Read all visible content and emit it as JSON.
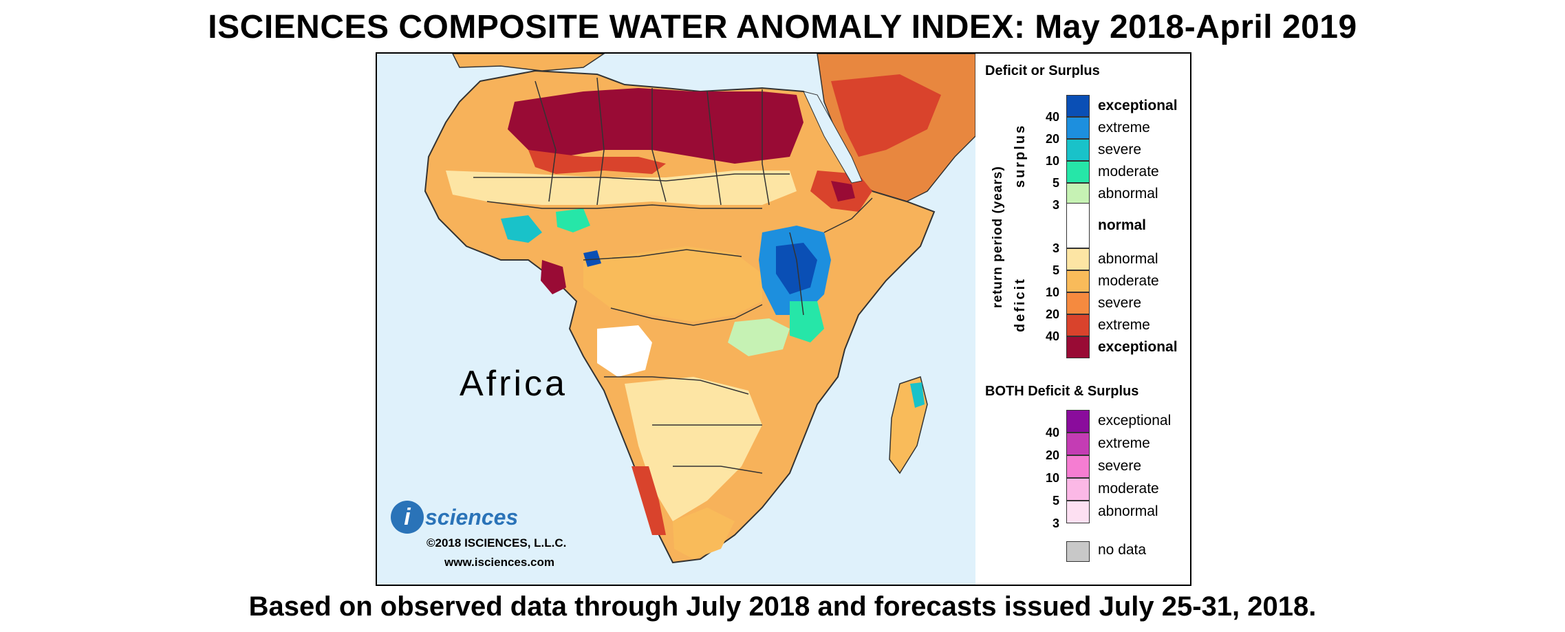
{
  "title": "ISCIENCES COMPOSITE WATER ANOMALY INDEX: May 2018-April 2019",
  "footer": "Based on observed data through July 2018 and forecasts issued July 25-31, 2018.",
  "map": {
    "region_label": "Africa",
    "logo_letter": "i",
    "logo_text": "sciences",
    "copyright": "©2018 ISCIENCES, L.L.C.",
    "website": "www.isciences.com"
  },
  "legend": {
    "heading_main": "Deficit or Surplus",
    "axis_label": "return period (years)",
    "surplus_label": "surplus",
    "deficit_label": "deficit",
    "normal_label": "normal",
    "surplus_classes": [
      {
        "label": "exceptional",
        "color": "#0a4fb5"
      },
      {
        "label": "extreme",
        "color": "#1d8fde"
      },
      {
        "label": "severe",
        "color": "#19c2c9"
      },
      {
        "label": "moderate",
        "color": "#26e6a8"
      },
      {
        "label": "abnormal",
        "color": "#c6f2b4"
      }
    ],
    "surplus_periods": [
      "40",
      "20",
      "10",
      "5",
      "3"
    ],
    "deficit_periods": [
      "3",
      "5",
      "10",
      "20",
      "40"
    ],
    "deficit_classes": [
      {
        "label": "abnormal",
        "color": "#fde5a4"
      },
      {
        "label": "moderate",
        "color": "#f9bb5a"
      },
      {
        "label": "severe",
        "color": "#f58a3f"
      },
      {
        "label": "extreme",
        "color": "#d9432c"
      },
      {
        "label": "exceptional",
        "color": "#990b35"
      }
    ],
    "heading_both": "BOTH Deficit & Surplus",
    "both_periods": [
      "40",
      "20",
      "10",
      "5",
      "3"
    ],
    "both_classes": [
      {
        "label": "exceptional",
        "color": "#8a0c9c"
      },
      {
        "label": "extreme",
        "color": "#c43cb4"
      },
      {
        "label": "severe",
        "color": "#f57dd2"
      },
      {
        "label": "moderate",
        "color": "#fbb8e6"
      },
      {
        "label": "abnormal",
        "color": "#fde0f2"
      }
    ],
    "no_data_label": "no data",
    "no_data_color": "#c8c8c8",
    "normal_color": "#ffffff"
  }
}
